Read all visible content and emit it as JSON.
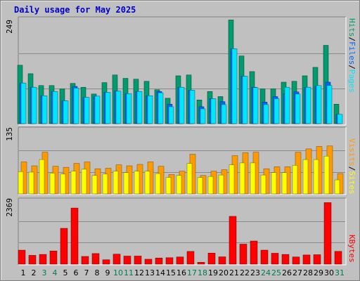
{
  "title": "Daily usage for May 2025",
  "colors": {
    "hits": "#009b6e",
    "files": "#0066ff",
    "pages": "#00e6ff",
    "visits": "#ff9b00",
    "sites": "#ffff00",
    "kbytes": "#ff0000",
    "grid": "#8a8a8a",
    "panel_bg": "#c0c0c0",
    "weekend_label": "#007c52",
    "weekday_label": "#000000"
  },
  "legend": {
    "top": {
      "pages": "Pages",
      "sep1": "/",
      "files": "Files",
      "sep2": "/",
      "hits": "Hits"
    },
    "middle": {
      "sites": "Sites",
      "sep": "/",
      "visits": "Visits"
    },
    "bottom": {
      "kbytes": "KBytes"
    }
  },
  "chart_data": [
    {
      "type": "bar",
      "name": "hits-files-pages",
      "ymax": 249,
      "ymax_label": "249",
      "categories": [
        "1",
        "2",
        "3",
        "4",
        "5",
        "6",
        "7",
        "8",
        "9",
        "10",
        "11",
        "12",
        "13",
        "14",
        "15",
        "16",
        "17",
        "18",
        "19",
        "20",
        "21",
        "22",
        "23",
        "24",
        "25",
        "26",
        "27",
        "28",
        "29",
        "30",
        "31"
      ],
      "weekend": [
        false,
        false,
        true,
        true,
        false,
        false,
        false,
        false,
        false,
        true,
        true,
        false,
        false,
        false,
        false,
        false,
        true,
        true,
        false,
        false,
        false,
        false,
        false,
        true,
        true,
        false,
        false,
        false,
        false,
        false,
        true
      ],
      "series": [
        {
          "name": "Hits",
          "values": [
            138,
            118,
            90,
            90,
            82,
            95,
            86,
            70,
            97,
            115,
            107,
            105,
            100,
            80,
            60,
            113,
            115,
            56,
            76,
            64,
            245,
            160,
            123,
            82,
            82,
            98,
            100,
            113,
            133,
            185,
            46
          ]
        },
        {
          "name": "Files",
          "values": [
            96,
            86,
            66,
            76,
            54,
            88,
            62,
            65,
            74,
            77,
            71,
            76,
            66,
            76,
            46,
            86,
            79,
            40,
            59,
            52,
            177,
            112,
            86,
            51,
            64,
            71,
            75,
            86,
            88,
            98,
            22
          ]
        },
        {
          "name": "Pages",
          "values": [
            96,
            86,
            66,
            76,
            54,
            84,
            62,
            65,
            74,
            77,
            71,
            76,
            66,
            73,
            40,
            86,
            79,
            35,
            59,
            45,
            177,
            112,
            85,
            45,
            59,
            86,
            70,
            86,
            90,
            90,
            22
          ]
        }
      ]
    },
    {
      "type": "bar",
      "name": "visits-sites",
      "ymax": 135,
      "ymax_label": "135",
      "series": [
        {
          "name": "Visits",
          "values": [
            66,
            58,
            86,
            57,
            55,
            63,
            66,
            52,
            53,
            60,
            58,
            61,
            66,
            57,
            40,
            47,
            82,
            38,
            47,
            50,
            79,
            85,
            86,
            52,
            56,
            56,
            86,
            93,
            98,
            99,
            42
          ]
        },
        {
          "name": "Sites",
          "values": [
            46,
            45,
            71,
            43,
            41,
            47,
            51,
            38,
            41,
            47,
            44,
            47,
            47,
            42,
            34,
            38,
            63,
            34,
            36,
            39,
            60,
            64,
            64,
            39,
            44,
            44,
            59,
            71,
            71,
            78,
            29
          ]
        }
      ]
    },
    {
      "type": "bar",
      "name": "kbytes",
      "ymax": 2369,
      "ymax_label": "2369",
      "series": [
        {
          "name": "KBytes",
          "values": [
            513,
            323,
            357,
            484,
            1313,
            2057,
            283,
            389,
            162,
            367,
            296,
            297,
            181,
            226,
            236,
            264,
            466,
            68,
            406,
            269,
            1752,
            734,
            848,
            514,
            400,
            357,
            264,
            337,
            347,
            2256,
            468
          ]
        }
      ]
    }
  ]
}
